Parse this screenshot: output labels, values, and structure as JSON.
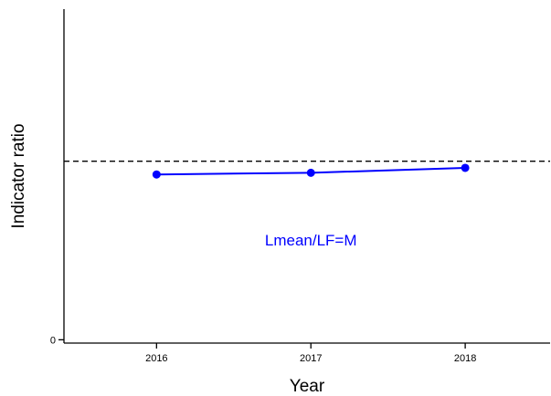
{
  "chart_data": {
    "type": "line",
    "xlabel": "Year",
    "ylabel": "Indicator ratio",
    "x": [
      2016,
      2017,
      2018
    ],
    "xlim": [
      2015.4,
      2018.55
    ],
    "ylim": [
      -0.02,
      2.0
    ],
    "y_ticks": [
      0
    ],
    "series": [
      {
        "values": [
          1.0,
          1.01,
          1.04
        ],
        "color": "#0000ff"
      }
    ],
    "reference_line": {
      "y": 1.08,
      "style": "dashed",
      "color": "#000000"
    },
    "annotation": {
      "text": "Lmean/LF=M",
      "x": 2017,
      "y": 0.57,
      "color": "#0000ff"
    },
    "grid": false,
    "legend": "none"
  }
}
